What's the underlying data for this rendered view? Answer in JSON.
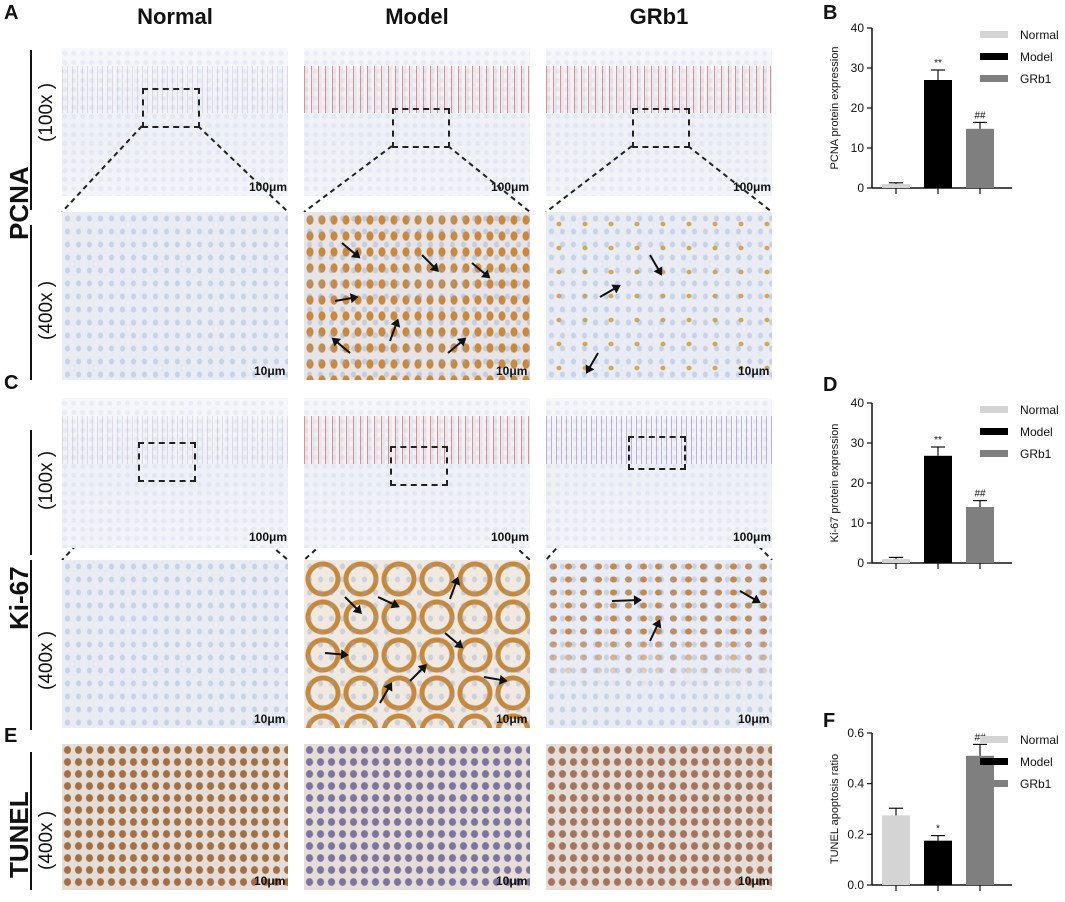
{
  "panels": {
    "A": "A",
    "B": "B",
    "C": "C",
    "D": "D",
    "E": "E",
    "F": "F"
  },
  "columns": [
    "Normal",
    "Model",
    "GRb1"
  ],
  "rows": {
    "pcna": "PCNA",
    "ki67": "Ki-67",
    "tunel": "TUNEL"
  },
  "magnification": {
    "low": "(100x )",
    "high": "(400x )"
  },
  "scale_bars": {
    "low": "100μm",
    "high": "10μm"
  },
  "colors": {
    "normal": "#d4d4d4",
    "model": "#000000",
    "grb1": "#7f7f7f"
  },
  "chart_data": [
    {
      "type": "bar",
      "panel": "B",
      "categories": [
        "Normal",
        "Model",
        "GRb1"
      ],
      "values": [
        1.0,
        27.0,
        14.8
      ],
      "errors": [
        0.3,
        2.5,
        1.6
      ],
      "significance": [
        "",
        "**",
        "##"
      ],
      "ylabel": "PCNA  protein expression",
      "ylim": [
        0,
        40
      ],
      "yticks": [
        0,
        10,
        20,
        30,
        40
      ],
      "legend": [
        "Normal",
        "Model",
        "GRb1"
      ],
      "legend_position": "top-right"
    },
    {
      "type": "bar",
      "panel": "D",
      "categories": [
        "Normal",
        "Model",
        "GRb1"
      ],
      "values": [
        1.0,
        26.8,
        14.0
      ],
      "errors": [
        0.4,
        2.2,
        1.6
      ],
      "significance": [
        "",
        "**",
        "##"
      ],
      "ylabel": "Ki-67  protein expression",
      "ylim": [
        0,
        40
      ],
      "yticks": [
        0,
        10,
        20,
        30,
        40
      ],
      "legend": [
        "Normal",
        "Model",
        "GRb1"
      ],
      "legend_position": "top-right"
    },
    {
      "type": "bar",
      "panel": "F",
      "categories": [
        "Normal",
        "Model",
        "GRb1"
      ],
      "values": [
        0.275,
        0.175,
        0.51
      ],
      "errors": [
        0.028,
        0.02,
        0.045
      ],
      "significance": [
        "",
        "*",
        "##"
      ],
      "ylabel": "TUNEL apoptosis ratio",
      "ylim": [
        0,
        0.6
      ],
      "yticks": [
        "0.0",
        "0.2",
        "0.4",
        "0.6"
      ],
      "legend": [
        "Normal",
        "Model",
        "GRb1"
      ],
      "legend_position": "top-right"
    }
  ]
}
